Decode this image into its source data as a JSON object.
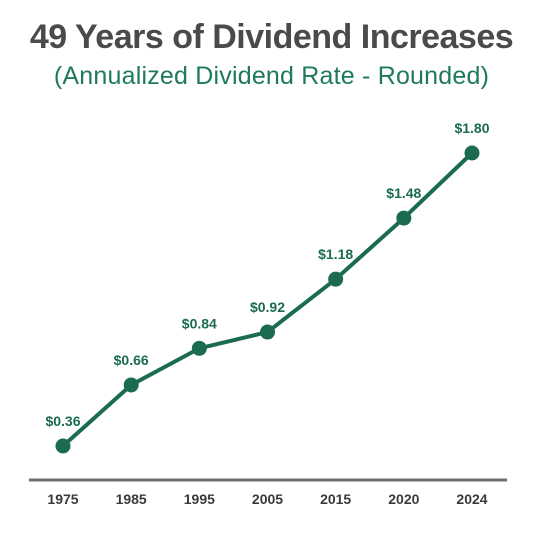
{
  "header": {
    "title": "49 Years of Dividend Increases",
    "subtitle": "(Annualized Dividend Rate - Rounded)"
  },
  "colors": {
    "title": "#4a4a4a",
    "accent": "#1b6b4f",
    "subtitle": "#1f7a5a",
    "axis": "#6d6d6d"
  },
  "chart_data": {
    "type": "line",
    "title": "49 Years of Dividend Increases",
    "subtitle": "(Annualized Dividend Rate - Rounded)",
    "categories": [
      "1975",
      "1985",
      "1995",
      "2005",
      "2015",
      "2020",
      "2024"
    ],
    "values": [
      0.36,
      0.66,
      0.84,
      0.92,
      1.18,
      1.48,
      1.8
    ],
    "data_labels": [
      "$0.36",
      "$0.66",
      "$0.84",
      "$0.92",
      "$1.18",
      "$1.48",
      "$1.80"
    ],
    "xlabel": "",
    "ylabel": "",
    "ylim": [
      0.2,
      1.9
    ],
    "grid": false,
    "legend": "none",
    "markers": true
  }
}
